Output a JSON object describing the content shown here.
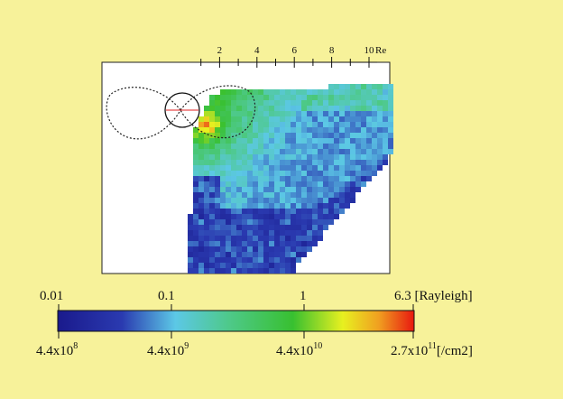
{
  "distance_axis": {
    "tick_labels": [
      "2",
      "4",
      "6",
      "8",
      "10"
    ],
    "unit": "Re",
    "tick_values": [
      2,
      4,
      6,
      8,
      10
    ]
  },
  "intensity_map": {
    "description_colors": {
      "low": "#1a1f9c",
      "mid": "#5fd0e0",
      "green": "#3ec43e",
      "yellow": "#f0f020",
      "high": "#f02010"
    }
  },
  "colorbar": {
    "rayleigh_labels": [
      "0.01",
      "0.1",
      "1",
      "6.3 [Rayleigh]"
    ],
    "column_density_labels": [
      {
        "mantissa": "4.4x10",
        "exponent": "8",
        "unit": ""
      },
      {
        "mantissa": "4.4x10",
        "exponent": "9",
        "unit": ""
      },
      {
        "mantissa": "4.4x10",
        "exponent": "10",
        "unit": ""
      },
      {
        "mantissa": "2.7x10",
        "exponent": "11",
        "unit": "[/cm2]"
      }
    ],
    "gradient_stops": [
      {
        "offset": 0.0,
        "color": "#1a1a8c"
      },
      {
        "offset": 0.18,
        "color": "#2a3ab0"
      },
      {
        "offset": 0.33,
        "color": "#5cc8e6"
      },
      {
        "offset": 0.48,
        "color": "#4ec98a"
      },
      {
        "offset": 0.66,
        "color": "#38c030"
      },
      {
        "offset": 0.8,
        "color": "#e8f020"
      },
      {
        "offset": 0.9,
        "color": "#f0a020"
      },
      {
        "offset": 1.0,
        "color": "#e81810"
      }
    ]
  }
}
